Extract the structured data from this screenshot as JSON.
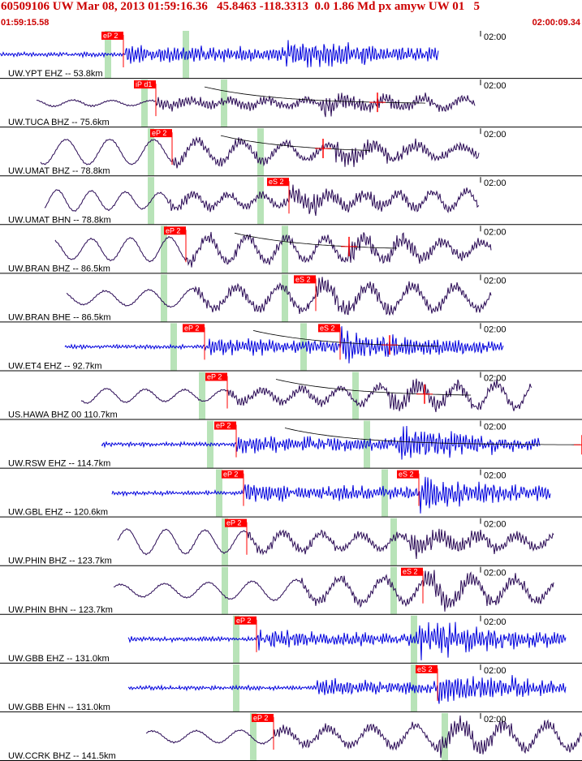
{
  "header": {
    "title": "60509106 UW Mar 08, 2013 01:59:16.36   45.8463 -118.3313  0.0 1.86 Md px amyw UW 01   5",
    "start_time": "01:59:15.58",
    "end_time": "02:00:09.34"
  },
  "time_mark_label": "02:00",
  "colors": {
    "background": "#ffffff",
    "header_text": "#cc0000",
    "pick": "#ff0000",
    "band": "#b8e3b8",
    "trace_blue": "#0000dd",
    "trace_dark": "#2a0a55",
    "separator": "#000000"
  },
  "traces": [
    {
      "label": "UW.YPT EHZ -- 53.8km",
      "color": "blue",
      "kind": "high",
      "start": 0,
      "end": 540,
      "p_pick": {
        "label": "eP 2",
        "x": 152
      },
      "s_pick": null,
      "bands": [
        133,
        229
      ],
      "decay": false
    },
    {
      "label": "UW.TUCA BHZ -- 75.6km",
      "color": "dark",
      "kind": "mix",
      "start": 45,
      "end": 585,
      "p_pick": {
        "label": "iP d1",
        "x": 192
      },
      "s_pick": null,
      "bands": [
        178,
        276
      ],
      "decay": true,
      "decay_mark": 465
    },
    {
      "label": "UW.UMAT BHZ -- 78.8km",
      "color": "dark",
      "kind": "low",
      "start": 50,
      "end": 590,
      "p_pick": {
        "label": "eP 2",
        "x": 212
      },
      "s_pick": null,
      "bands": [
        186,
        321
      ],
      "decay": true,
      "decay_mark": 398
    },
    {
      "label": "UW.UMAT BHN -- 78.8km",
      "color": "dark",
      "kind": "low",
      "start": 55,
      "end": 590,
      "p_pick": null,
      "s_pick": {
        "label": "eS 2",
        "x": 356
      },
      "bands": [
        186,
        321
      ],
      "decay": false
    },
    {
      "label": "UW.BRAN BHZ -- 86.5km",
      "color": "dark",
      "kind": "low",
      "start": 68,
      "end": 605,
      "p_pick": {
        "label": "eP 2",
        "x": 229
      },
      "s_pick": null,
      "bands": [
        202,
        351
      ],
      "decay": true,
      "decay_mark": 430
    },
    {
      "label": "UW.BRAN BHE -- 86.5km",
      "color": "dark",
      "kind": "low",
      "start": 82,
      "end": 605,
      "p_pick": null,
      "s_pick": {
        "label": "eS 2",
        "x": 389
      },
      "bands": [
        202,
        351
      ],
      "decay": false
    },
    {
      "label": "UW.ET4 EHZ -- 92.7km",
      "color": "blue",
      "kind": "high",
      "start": 80,
      "end": 620,
      "p_pick": {
        "label": "eP 2",
        "x": 252
      },
      "s_pick": {
        "label": "eS 2",
        "x": 419
      },
      "bands": [
        214,
        374
      ],
      "decay": true,
      "decay_mark": 480
    },
    {
      "label": "US.HAWA BHZ 00 110.7km",
      "color": "dark",
      "kind": "low",
      "start": 100,
      "end": 655,
      "p_pick": {
        "label": "eP 2",
        "x": 280
      },
      "s_pick": null,
      "bands": [
        249,
        438
      ],
      "decay": true,
      "decay_mark": 523
    },
    {
      "label": "UW.RSW EHZ -- 114.7km",
      "color": "blue",
      "kind": "high",
      "start": 125,
      "end": 665,
      "p_pick": {
        "label": "eP 2",
        "x": 291
      },
      "s_pick": null,
      "bands": [
        259,
        452
      ],
      "decay": true,
      "decay_mark": 717
    },
    {
      "label": "UW.GBL EHZ -- 120.6km",
      "color": "blue",
      "kind": "high",
      "start": 138,
      "end": 678,
      "p_pick": {
        "label": "eP 2",
        "x": 300
      },
      "s_pick": {
        "label": "eS 2",
        "x": 516
      },
      "bands": [
        270,
        474
      ],
      "decay": false
    },
    {
      "label": "UW.PHIN BHZ -- 123.7km",
      "color": "dark",
      "kind": "low",
      "start": 145,
      "end": 682,
      "p_pick": {
        "label": "eP 2",
        "x": 304
      },
      "s_pick": null,
      "bands": [
        277,
        485
      ],
      "decay": false
    },
    {
      "label": "UW.PHIN BHN -- 123.7km",
      "color": "dark",
      "kind": "low",
      "start": 140,
      "end": 682,
      "p_pick": null,
      "s_pick": {
        "label": "eS 2",
        "x": 521
      },
      "bands": [
        277,
        485
      ],
      "decay": false
    },
    {
      "label": "UW.GBB EHZ -- 131.0km",
      "color": "blue",
      "kind": "high",
      "start": 158,
      "end": 697,
      "p_pick": {
        "label": "eP 2",
        "x": 316
      },
      "s_pick": null,
      "bands": [
        291,
        510
      ],
      "decay": false
    },
    {
      "label": "UW.GBB EHN -- 131.0km",
      "color": "blue",
      "kind": "high",
      "start": 158,
      "end": 697,
      "p_pick": null,
      "s_pick": {
        "label": "eS 2",
        "x": 539
      },
      "bands": [
        291,
        510
      ],
      "decay": false
    },
    {
      "label": "UW.CCRK BHZ -- 141.5km",
      "color": "dark",
      "kind": "low",
      "start": 180,
      "end": 717,
      "p_pick": {
        "label": "eP 2",
        "x": 337
      },
      "s_pick": null,
      "bands": [
        312,
        548
      ],
      "decay": false
    }
  ]
}
